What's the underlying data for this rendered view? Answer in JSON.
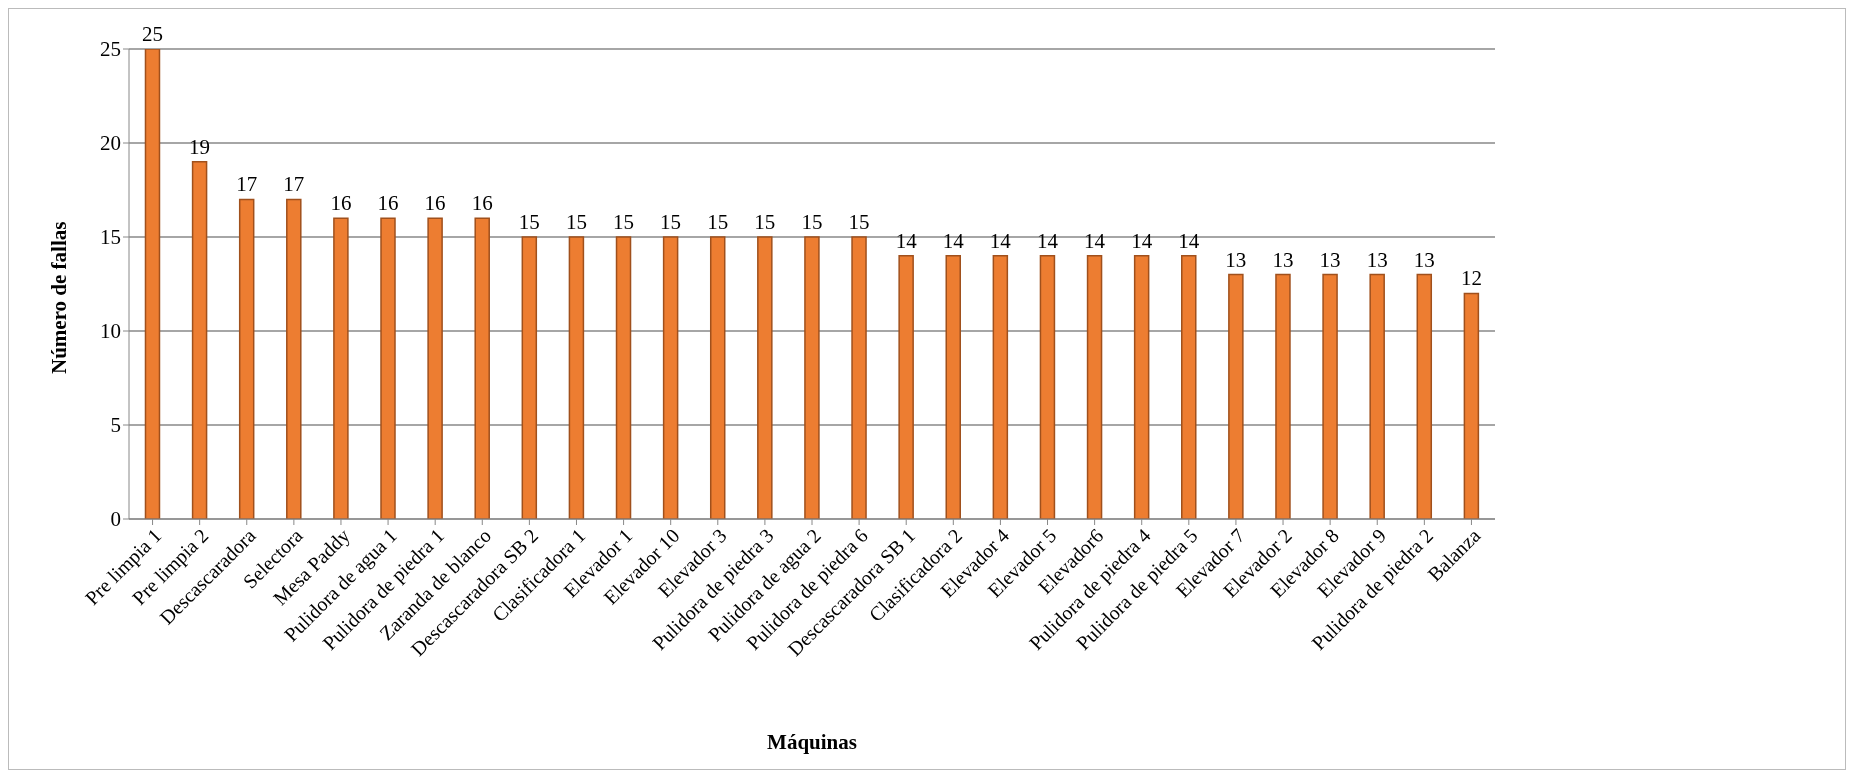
{
  "chart_data": {
    "type": "bar",
    "xlabel": "Máquinas",
    "ylabel": "Número de fallas",
    "categories": [
      "Pre limpia 1",
      "Pre limpia 2",
      "Descascaradora",
      "Selectora",
      "Mesa Paddy",
      "Pulidora de agua 1",
      "Pulidora de piedra 1",
      "Zaranda de blanco",
      "Descascaradora SB 2",
      "Clasificadora 1",
      "Elevador 1",
      "Elevador 10",
      "Elevador 3",
      "Pulidora de piedra 3",
      "Pulidora de agua 2",
      "Pulidora de piedra 6",
      "Descascaradora SB 1",
      "Clasificadora 2",
      "Elevador 4",
      "Elevador 5",
      "Elevador6",
      "Pulidora de piedra 4",
      "Pulidora de piedra 5",
      "Elevador 7",
      "Elevador 2",
      "Elevador 8",
      "Elevador 9",
      "Pulidora de piedra 2",
      "Balanza"
    ],
    "values": [
      25,
      19,
      17,
      17,
      16,
      16,
      16,
      16,
      15,
      15,
      15,
      15,
      15,
      15,
      15,
      15,
      14,
      14,
      14,
      14,
      14,
      14,
      14,
      13,
      13,
      13,
      13,
      13,
      12
    ],
    "color": "#ed7d31",
    "ylim": [
      0,
      25
    ],
    "yticks": [
      0,
      5,
      10,
      15,
      20,
      25
    ],
    "grid": "y",
    "data_labels": true
  }
}
